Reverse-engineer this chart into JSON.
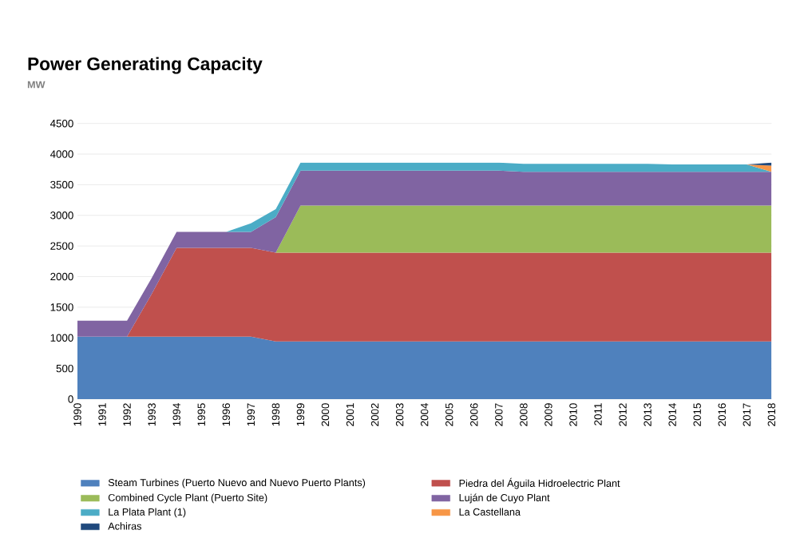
{
  "chart_data": {
    "type": "area",
    "title": "Power Generating Capacity",
    "subtitle": "MW",
    "stacked": true,
    "grid": "y",
    "legend": "bottom",
    "categories": [
      "1990",
      "1991",
      "1992",
      "1993",
      "1994",
      "1995",
      "1996",
      "1997",
      "1998",
      "1999",
      "2000",
      "2001",
      "2002",
      "2003",
      "2004",
      "2005",
      "2006",
      "2007",
      "2008",
      "2009",
      "2010",
      "2011",
      "2012",
      "2013",
      "2014",
      "2015",
      "2016",
      "2017",
      "2018"
    ],
    "ylim": [
      0,
      4500
    ],
    "yticks": [
      0,
      500,
      1000,
      1500,
      2000,
      2500,
      3000,
      3500,
      4000,
      4500
    ],
    "series": [
      {
        "name": "Steam Turbines (Puerto Nuevo and Nuevo Puerto Plants)",
        "color": "#4f81bd",
        "values": [
          1020,
          1020,
          1020,
          1020,
          1020,
          1020,
          1020,
          1020,
          940,
          940,
          940,
          940,
          940,
          940,
          940,
          940,
          940,
          940,
          940,
          940,
          940,
          940,
          940,
          940,
          940,
          940,
          940,
          940,
          940
        ]
      },
      {
        "name": "Piedra del Águila Hidroelectric Plant",
        "color": "#c0504d",
        "values": [
          0,
          0,
          0,
          700,
          1450,
          1450,
          1450,
          1450,
          1450,
          1450,
          1450,
          1450,
          1450,
          1450,
          1450,
          1450,
          1450,
          1450,
          1450,
          1450,
          1450,
          1450,
          1450,
          1450,
          1450,
          1450,
          1450,
          1450,
          1450
        ]
      },
      {
        "name": "Combined Cycle Plant (Puerto Site)",
        "color": "#9bbb59",
        "values": [
          0,
          0,
          0,
          0,
          0,
          0,
          0,
          0,
          0,
          770,
          770,
          770,
          770,
          770,
          770,
          770,
          770,
          770,
          770,
          770,
          770,
          770,
          770,
          770,
          770,
          770,
          770,
          770,
          770
        ]
      },
      {
        "name": "Luján de Cuyo Plant",
        "color": "#8064a2",
        "values": [
          260,
          260,
          260,
          260,
          260,
          260,
          260,
          260,
          580,
          570,
          570,
          570,
          570,
          570,
          570,
          570,
          570,
          570,
          550,
          550,
          550,
          550,
          550,
          550,
          550,
          550,
          550,
          550,
          550
        ]
      },
      {
        "name": "La Plata Plant (1)",
        "color": "#4bacc6",
        "values": [
          0,
          0,
          0,
          0,
          0,
          0,
          0,
          140,
          130,
          130,
          130,
          130,
          130,
          130,
          130,
          130,
          130,
          130,
          130,
          130,
          130,
          130,
          130,
          130,
          120,
          120,
          120,
          120,
          0
        ]
      },
      {
        "name": "La Castellana",
        "color": "#f79646",
        "values": [
          null,
          null,
          null,
          null,
          null,
          null,
          null,
          null,
          null,
          null,
          null,
          null,
          null,
          null,
          null,
          null,
          null,
          null,
          null,
          null,
          null,
          null,
          null,
          null,
          null,
          null,
          null,
          0,
          100
        ]
      },
      {
        "name": "Achiras",
        "color": "#1f497d",
        "values": [
          null,
          null,
          null,
          null,
          null,
          null,
          null,
          null,
          null,
          null,
          null,
          null,
          null,
          null,
          null,
          null,
          null,
          null,
          null,
          null,
          null,
          null,
          null,
          null,
          null,
          null,
          null,
          0,
          50
        ]
      }
    ]
  }
}
